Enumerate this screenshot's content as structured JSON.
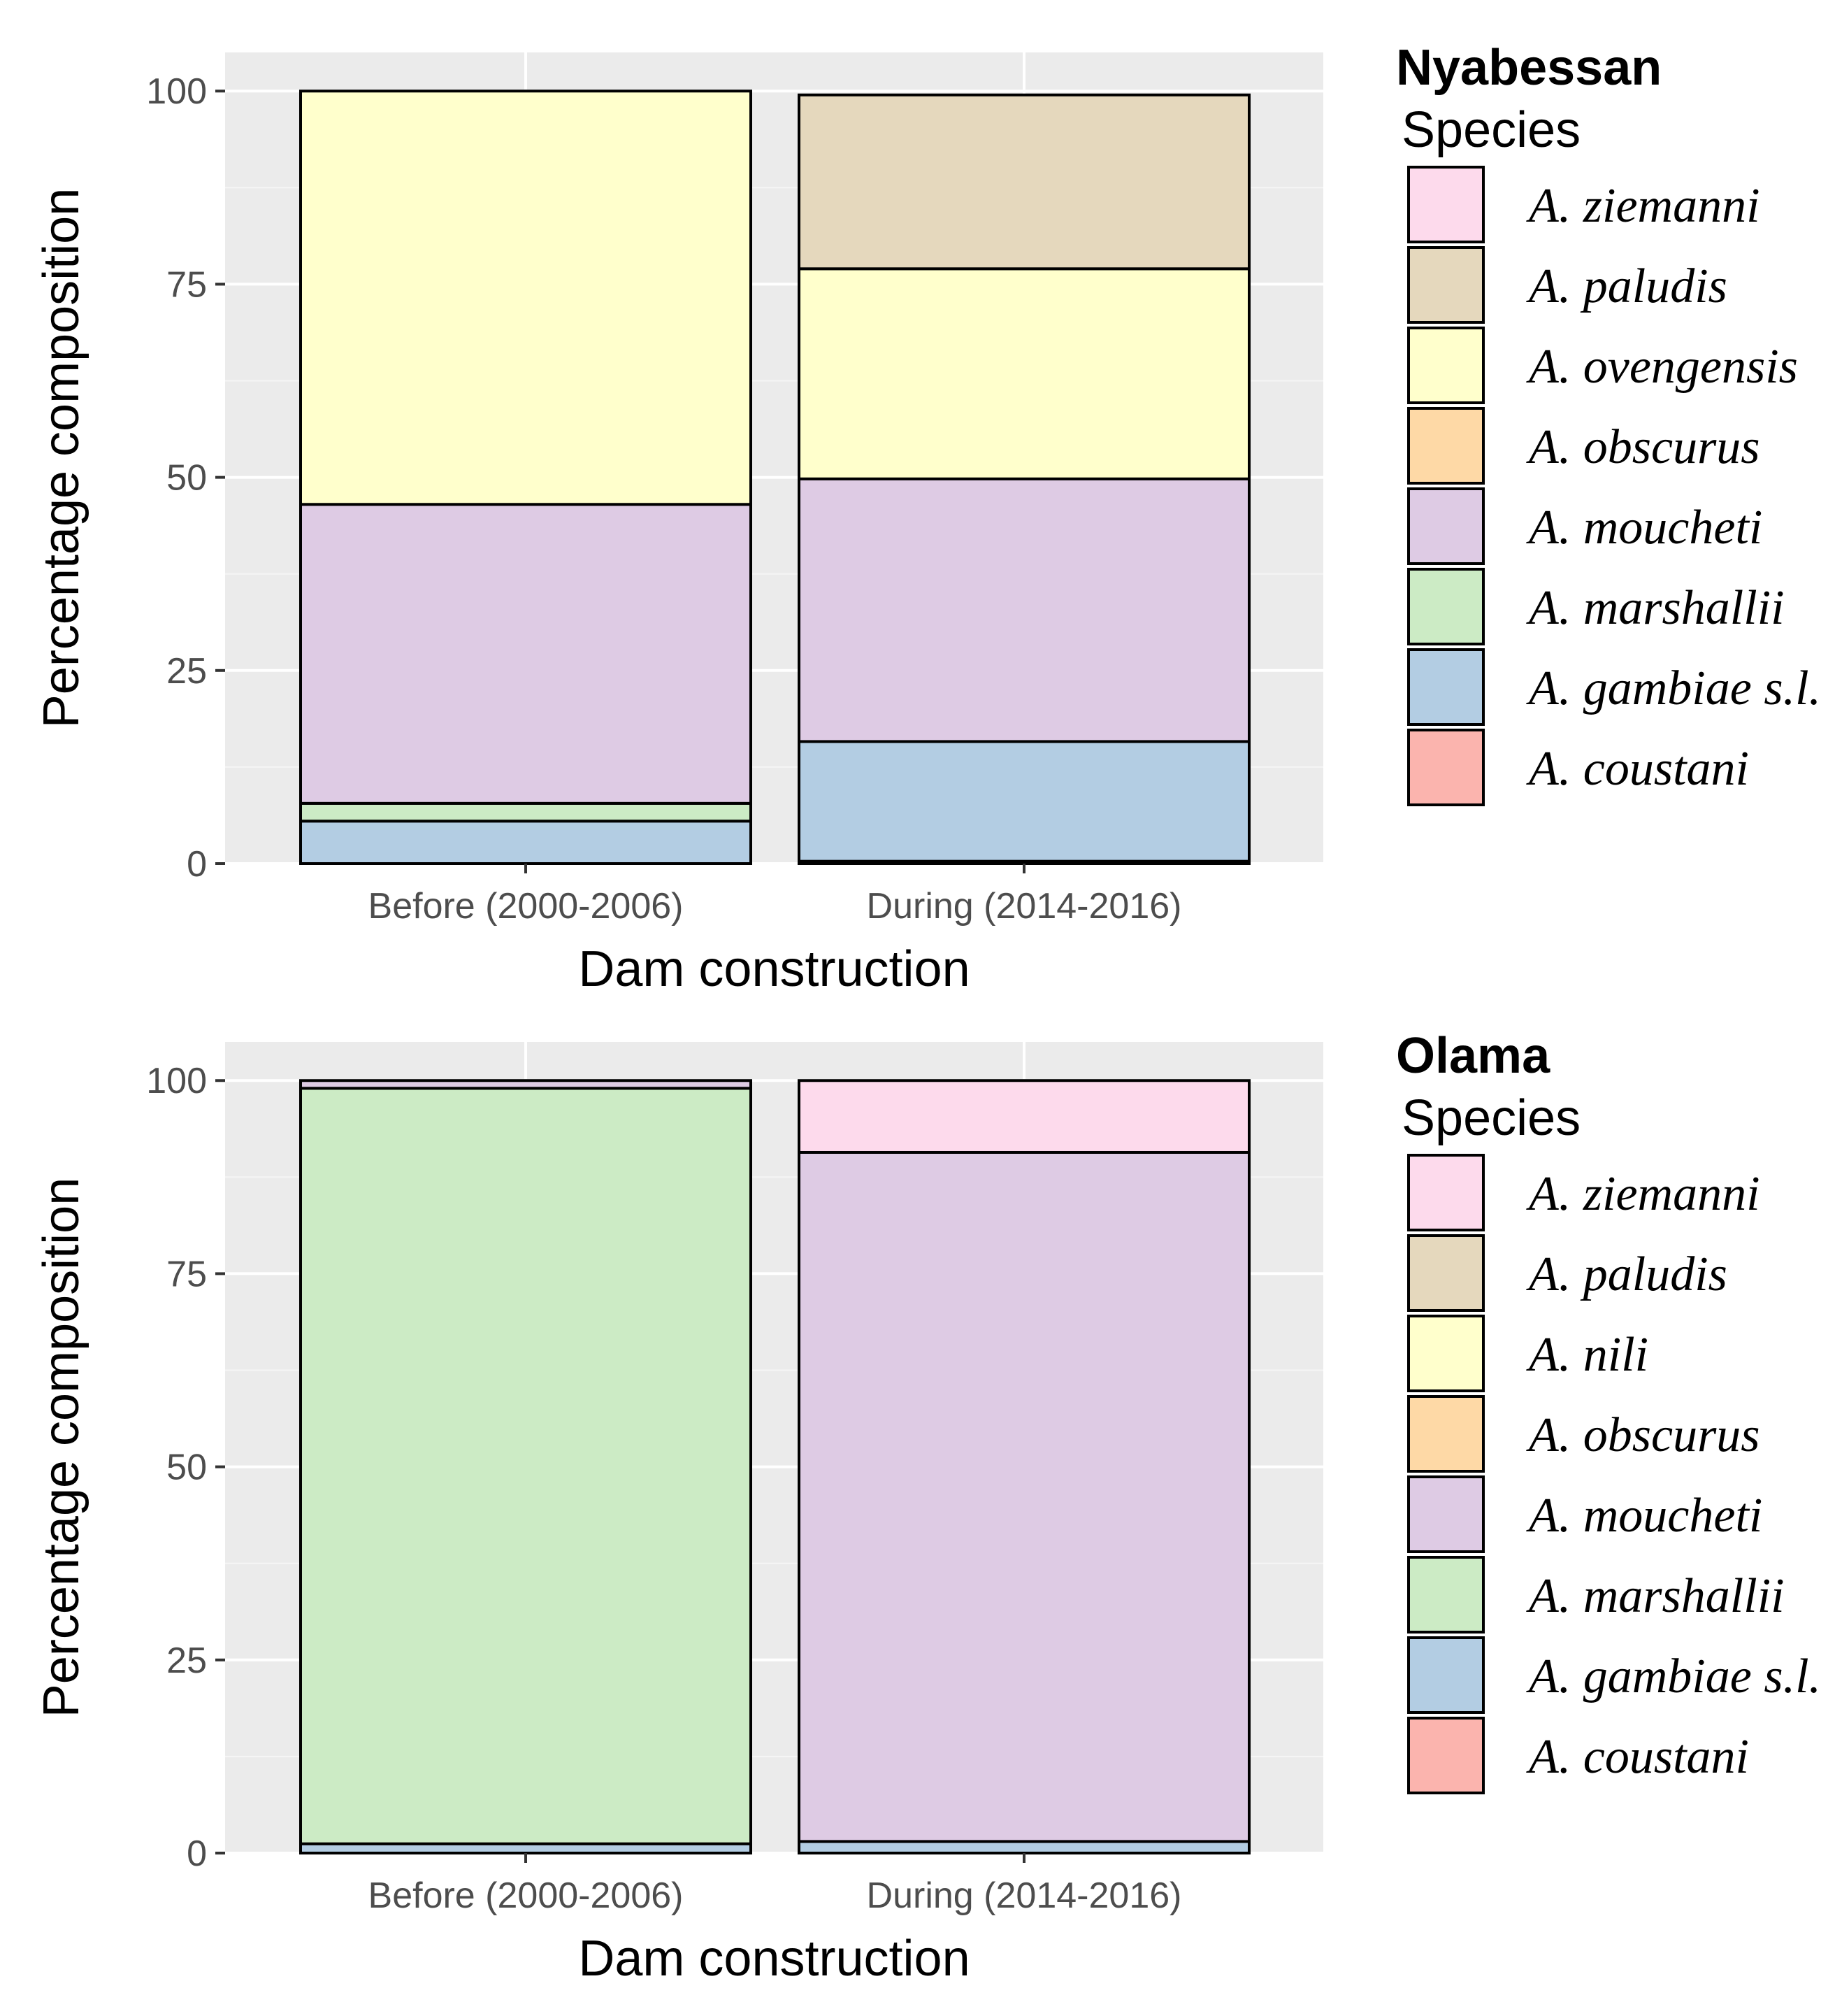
{
  "chart_data": [
    {
      "type": "bar",
      "stacked": true,
      "panel_title": "Nyabessan",
      "legend_title": "Species",
      "xlabel": "Dam construction",
      "ylabel": "Percentage composition",
      "ylim": [
        0,
        105
      ],
      "yticks": [
        "0",
        "25",
        "50",
        "75",
        "100"
      ],
      "categories": [
        "Before (2000-2006)",
        "During (2014-2016)"
      ],
      "legend": [
        "A. ziemanni",
        "A. paludis",
        "A. ovengensis",
        "A. obscurus",
        "A. moucheti",
        "A. marshallii",
        "A. gambiae s.l.",
        "A. coustani"
      ],
      "colors": {
        "A. ziemanni": "#FDDAEC",
        "A. paludis": "#E5D8BD",
        "A. ovengensis": "#FFFFCC",
        "A. nili": "#FFFFCC",
        "A. obscurus": "#FED9A6",
        "A. moucheti": "#DECBE4",
        "A. marshallii": "#CCEBC5",
        "A. gambiae s.l.": "#B3CDE3",
        "A. coustani": "#FBB4AE"
      },
      "series": [
        {
          "name": "A. ziemanni",
          "values": [
            0,
            0
          ]
        },
        {
          "name": "A. paludis",
          "values": [
            0,
            22.5
          ]
        },
        {
          "name": "A. ovengensis",
          "values": [
            53.5,
            27.2
          ]
        },
        {
          "name": "A. obscurus",
          "values": [
            0,
            0
          ]
        },
        {
          "name": "A. moucheti",
          "values": [
            38.7,
            34
          ]
        },
        {
          "name": "A. marshallii",
          "values": [
            2.3,
            0
          ]
        },
        {
          "name": "A. gambiae s.l.",
          "values": [
            5.5,
            15.5
          ]
        },
        {
          "name": "A. coustani",
          "values": [
            0,
            0.3
          ]
        }
      ]
    },
    {
      "type": "bar",
      "stacked": true,
      "panel_title": "Olama",
      "legend_title": "Species",
      "xlabel": "Dam construction",
      "ylabel": "Percentage composition",
      "ylim": [
        0,
        105
      ],
      "yticks": [
        "0",
        "25",
        "50",
        "75",
        "100"
      ],
      "categories": [
        "Before (2000-2006)",
        "During (2014-2016)"
      ],
      "legend": [
        "A. ziemanni",
        "A. paludis",
        "A. nili",
        "A. obscurus",
        "A. moucheti",
        "A. marshallii",
        "A. gambiae s.l.",
        "A. coustani"
      ],
      "colors": {
        "A. ziemanni": "#FDDAEC",
        "A. paludis": "#E5D8BD",
        "A. ovengensis": "#FFFFCC",
        "A. nili": "#FFFFCC",
        "A. obscurus": "#FED9A6",
        "A. moucheti": "#DECBE4",
        "A. marshallii": "#CCEBC5",
        "A. gambiae s.l.": "#B3CDE3",
        "A. coustani": "#FBB4AE"
      },
      "series": [
        {
          "name": "A. ziemanni",
          "values": [
            0,
            9.3
          ]
        },
        {
          "name": "A. paludis",
          "values": [
            0,
            0
          ]
        },
        {
          "name": "A. nili",
          "values": [
            0,
            0
          ]
        },
        {
          "name": "A. obscurus",
          "values": [
            0,
            0
          ]
        },
        {
          "name": "A. moucheti",
          "values": [
            1,
            89.2
          ]
        },
        {
          "name": "A. marshallii",
          "values": [
            97.8,
            0
          ]
        },
        {
          "name": "A. gambiae s.l.",
          "values": [
            1.2,
            1.5
          ]
        },
        {
          "name": "A. coustani",
          "values": [
            0,
            0
          ]
        }
      ]
    }
  ]
}
